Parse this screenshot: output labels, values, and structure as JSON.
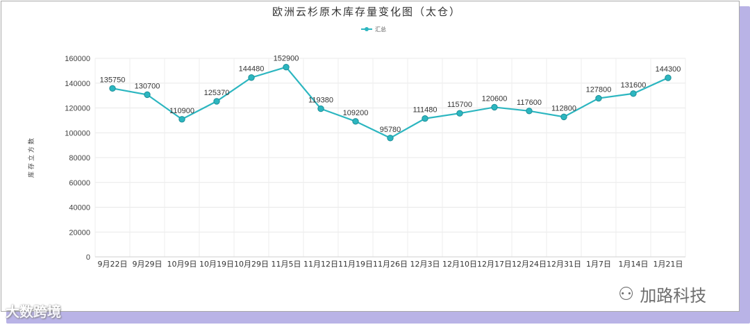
{
  "chart_data": {
    "type": "line",
    "title": "欧洲云杉原木库存量变化图（太仓）",
    "ylabel": "库存立方数",
    "xlabel": "",
    "legend": "top-center",
    "grid": true,
    "ylim": [
      0,
      160000
    ],
    "yticks": [
      "0",
      "20000",
      "40000",
      "60000",
      "80000",
      "100000",
      "120000",
      "140000",
      "160000"
    ],
    "categories": [
      "9月22日",
      "9月29日",
      "10月9日",
      "10月19日",
      "10月29日",
      "11月5日",
      "11月12日",
      "11月19日",
      "11月26日",
      "12月3日",
      "12月10日",
      "12月17日",
      "12月24日",
      "12月31日",
      "1月7日",
      "1月14日",
      "1月21日"
    ],
    "series": [
      {
        "name": "汇总",
        "color": "#2cb6c0",
        "values": [
          135750,
          130700,
          110900,
          125370,
          144480,
          152900,
          119380,
          109200,
          95780,
          111480,
          115700,
          120600,
          117600,
          112800,
          127800,
          131600,
          144300
        ]
      }
    ]
  },
  "watermarks": {
    "left": "大数跨境",
    "right": "加路科技",
    "right_icon": "wechat-icon"
  }
}
